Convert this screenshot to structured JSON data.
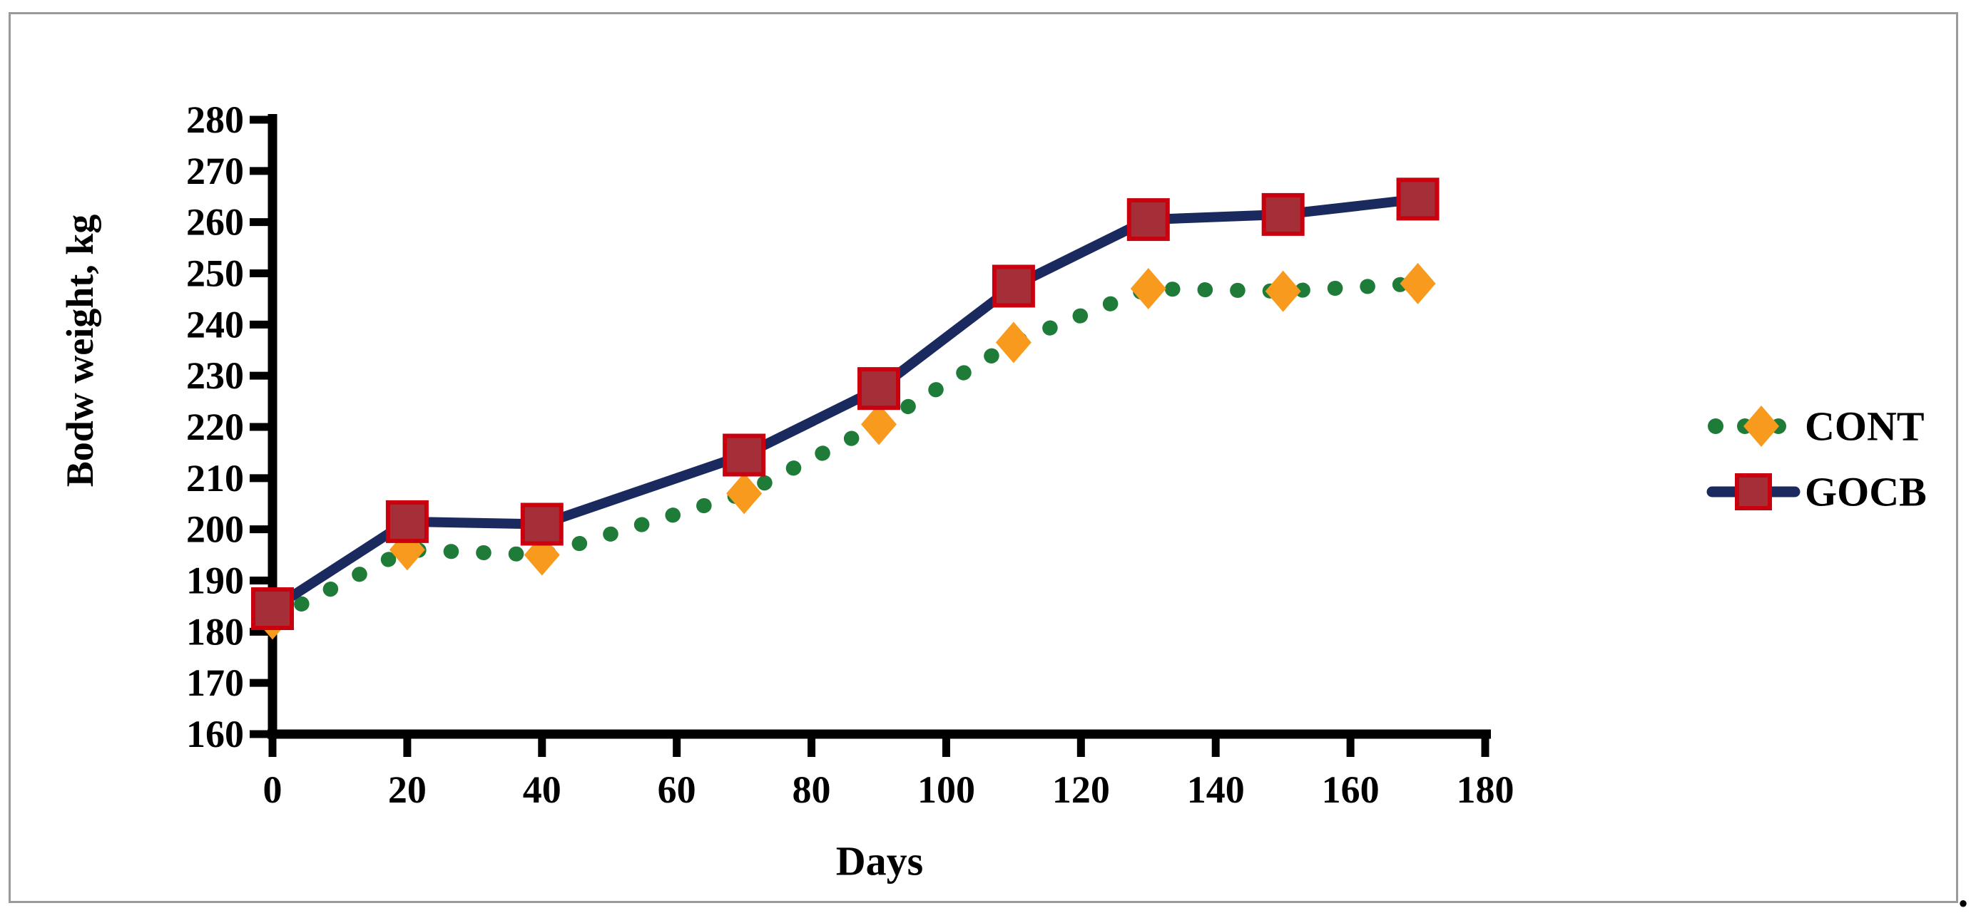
{
  "figure": {
    "trailing_period": ".",
    "frame_border_color": "#9a9a9a",
    "background_color": "#ffffff"
  },
  "legend": {
    "position": "right",
    "entries": [
      {
        "label": "CONT",
        "marker": "diamond",
        "marker_color": "#F79A1E",
        "line_color": "#1E7C38",
        "line_style": "dotted"
      },
      {
        "label": "GOCB",
        "marker": "square",
        "marker_color": "#A42F38",
        "marker_border_color": "#C9000E",
        "line_color": "#1A2A5E",
        "line_style": "solid"
      }
    ]
  },
  "chart_data": {
    "type": "line",
    "title": "",
    "xlabel": "Days",
    "ylabel": "Bodw weight, kg",
    "x": [
      0,
      20,
      40,
      70,
      90,
      110,
      130,
      150,
      170
    ],
    "series": [
      {
        "name": "CONT",
        "values": [
          182.5,
          196,
          195,
          207,
          220.5,
          236.5,
          247,
          246.5,
          248
        ],
        "line_color": "#1E7C38",
        "line_style": "dotted",
        "marker": "diamond",
        "marker_color": "#F79A1E"
      },
      {
        "name": "GOCB",
        "values": [
          184.5,
          201.5,
          201,
          214.5,
          227.5,
          247.5,
          260.5,
          261.5,
          264.5
        ],
        "line_color": "#1A2A5E",
        "line_style": "solid",
        "marker": "square",
        "marker_color": "#A42F38",
        "marker_border_color": "#C9000E"
      }
    ],
    "xlim": [
      0,
      180
    ],
    "ylim": [
      160,
      280
    ],
    "xticks": [
      0,
      20,
      40,
      60,
      80,
      100,
      120,
      140,
      160,
      180
    ],
    "yticks": [
      160,
      170,
      180,
      190,
      200,
      210,
      220,
      230,
      240,
      250,
      260,
      270,
      280
    ],
    "grid": false,
    "legend_position": "right",
    "axis_color": "#000000"
  }
}
